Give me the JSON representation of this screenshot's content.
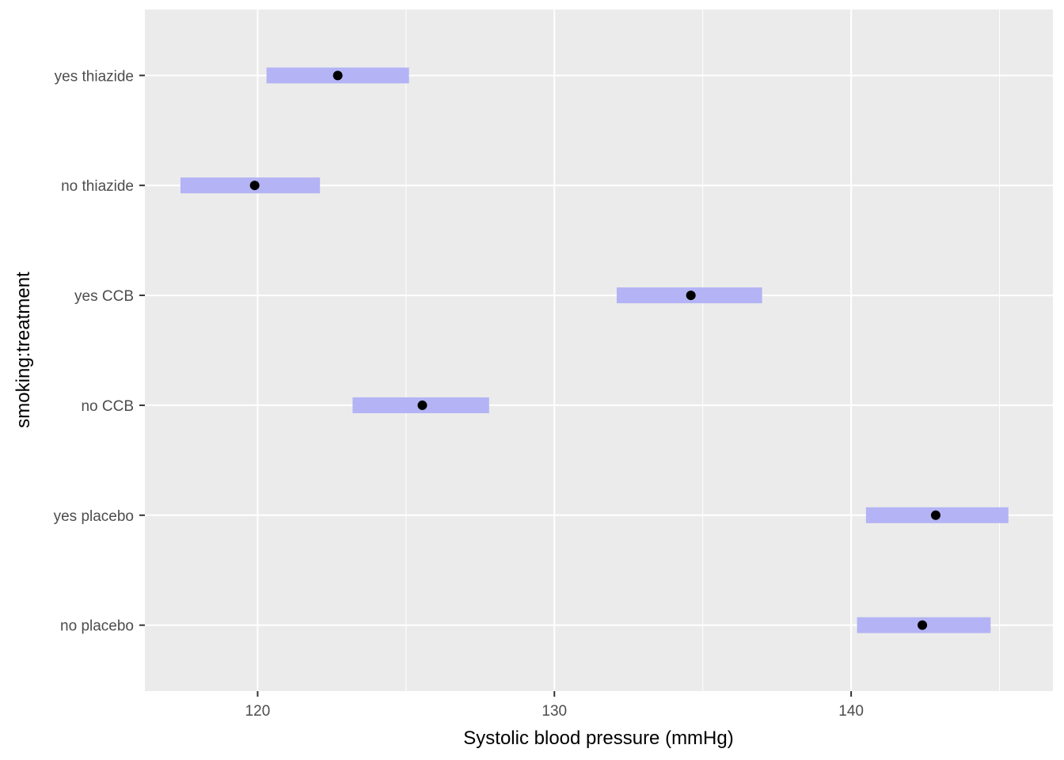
{
  "chart_data": {
    "type": "interval",
    "title": "",
    "xlabel": "Systolic blood pressure (mmHg)",
    "ylabel": "smoking:treatment",
    "xlim": [
      116.2,
      146.8
    ],
    "x_ticks": [
      120,
      130,
      140
    ],
    "x_tick_labels": [
      "120",
      "130",
      "140"
    ],
    "grid": true,
    "categories": [
      "no placebo",
      "yes placebo",
      "no CCB",
      "yes CCB",
      "no thiazide",
      "yes thiazide"
    ],
    "estimates": [
      142.4,
      142.85,
      125.55,
      134.6,
      119.9,
      122.7
    ],
    "lower": [
      140.2,
      140.5,
      123.2,
      132.1,
      117.4,
      120.3
    ],
    "upper": [
      144.7,
      145.3,
      127.8,
      137.0,
      122.1,
      125.1
    ],
    "colors": {
      "panel_background": "#ebebeb",
      "grid": "#ffffff",
      "interval": "#b3b3f5",
      "point": "#000000"
    }
  }
}
